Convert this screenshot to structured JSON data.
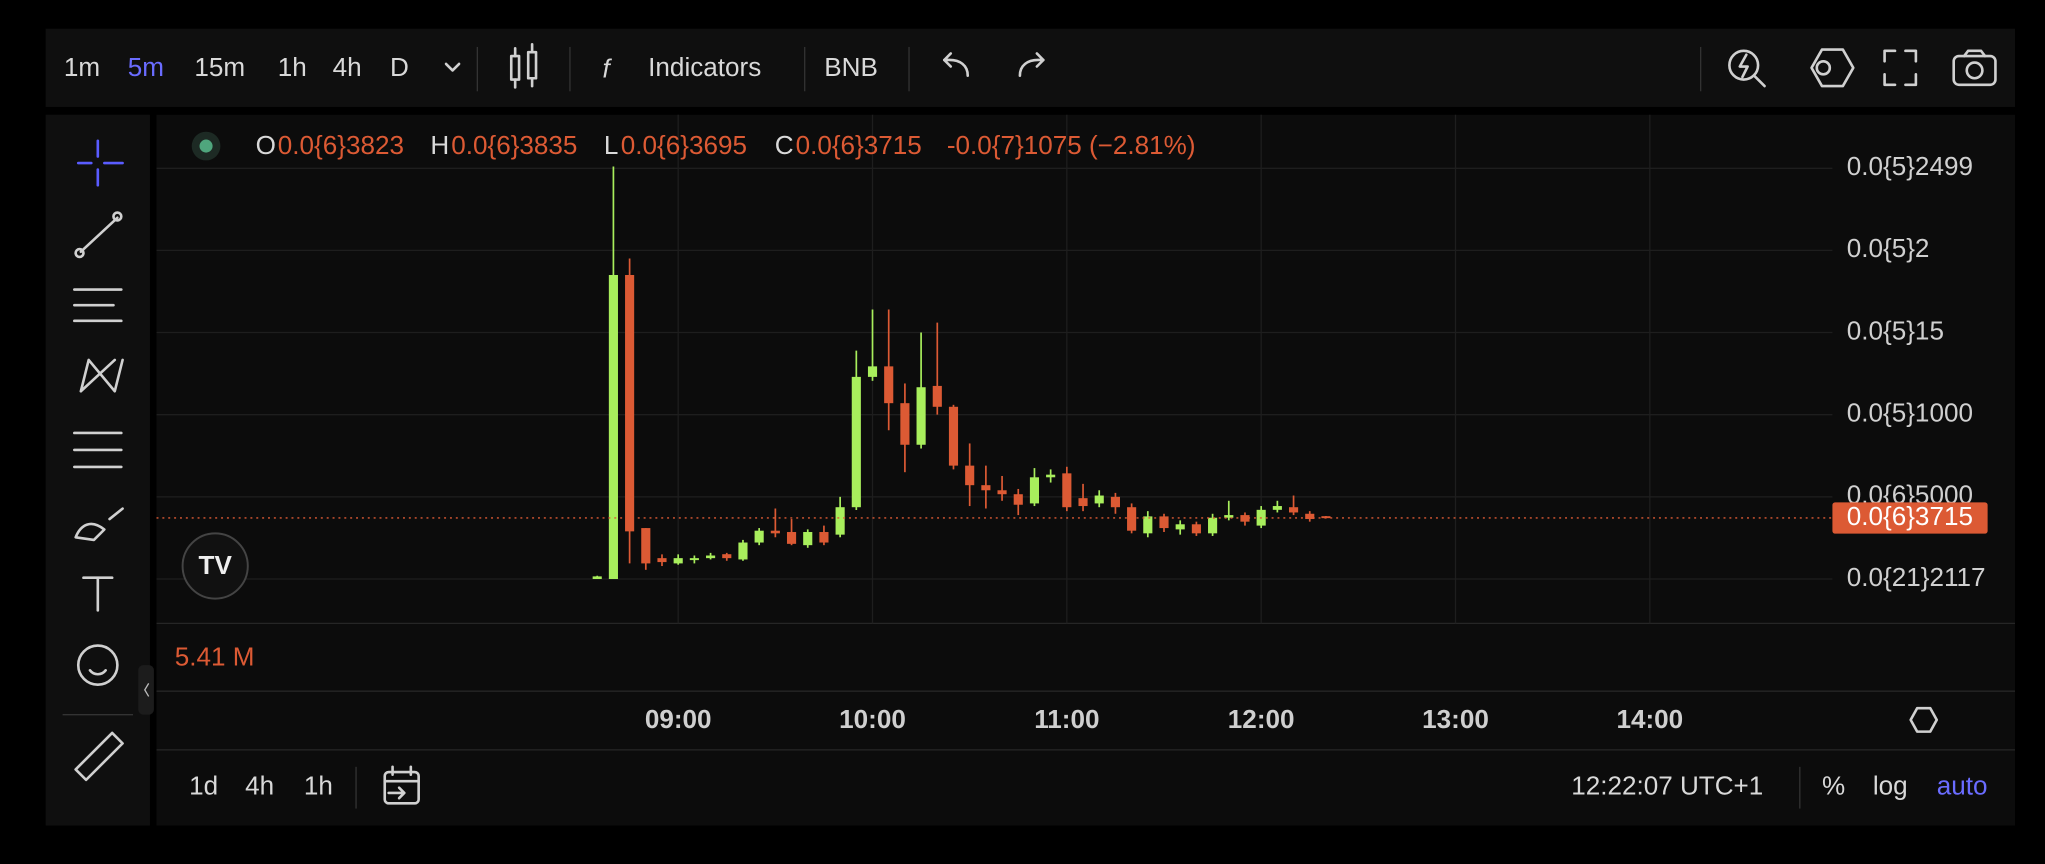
{
  "toolbar": {
    "intervals": [
      "1m",
      "5m",
      "15m",
      "1h",
      "4h",
      "D"
    ],
    "active_interval": "5m",
    "indicators": "Indicators",
    "symbol": "BNB"
  },
  "legend": {
    "o_label": "O",
    "o": "0.0{6}3823",
    "h_label": "H",
    "h": "0.0{6}3835",
    "l_label": "L",
    "l": "0.0{6}3695",
    "c_label": "C",
    "c": "0.0{6}3715",
    "change": "-0.0{7}1075 (−2.81%)"
  },
  "volume_label": "5.41 M",
  "last_price_label": "0.0{6}3715",
  "bottom_bar": {
    "ranges": [
      "1d",
      "4h",
      "1h"
    ],
    "clock": "12:22:07 UTC+1",
    "percent": "%",
    "log": "log",
    "auto": "auto"
  },
  "chart_data": {
    "type": "candlestick",
    "up_color": "#a8ee5c",
    "down_color": "#dc5a34",
    "grid": true,
    "x": [
      "08:35",
      "08:40",
      "08:45",
      "08:50",
      "08:55",
      "09:00",
      "09:05",
      "09:10",
      "09:15",
      "09:20",
      "09:25",
      "09:30",
      "09:35",
      "09:40",
      "09:45",
      "09:50",
      "09:55",
      "10:00",
      "10:05",
      "10:10",
      "10:15",
      "10:20",
      "10:25",
      "10:30",
      "10:35",
      "10:40",
      "10:45",
      "10:50",
      "10:55",
      "11:00",
      "11:05",
      "11:10",
      "11:15",
      "11:20",
      "11:25",
      "11:30",
      "11:35",
      "11:40",
      "11:45",
      "11:50",
      "11:55",
      "12:00",
      "12:05",
      "12:10",
      "12:15",
      "12:20"
    ],
    "open": [
      0,
      0,
      1.85e-07,
      3.1e-08,
      1.27e-08,
      9.5e-09,
      1.19e-08,
      1.27e-08,
      1.51e-08,
      1.19e-08,
      2.22e-08,
      2.94e-08,
      2.86e-08,
      2.06e-08,
      2.86e-08,
      2.7e-08,
      4.37e-08,
      1.23e-07,
      1.294e-07,
      1.07e-07,
      8.17e-08,
      1.175e-07,
      1.048e-07,
      6.9e-08,
      5.71e-08,
      5.4e-08,
      5.16e-08,
      4.6e-08,
      6.19e-08,
      6.43e-08,
      4.92e-08,
      4.6e-08,
      5e-08,
      4.37e-08,
      2.78e-08,
      3.81e-08,
      3.02e-08,
      3.33e-08,
      2.78e-08,
      3.73e-08,
      3.89e-08,
      3.25e-08,
      4.21e-08,
      4.37e-08,
      3.97e-08,
      3.823e-08
    ],
    "high": [
      2e-09,
      2.51e-07,
      1.95e-07,
      3.1e-08,
      1.5e-08,
      1.5e-08,
      1.43e-08,
      1.59e-08,
      1.59e-08,
      2.38e-08,
      3.1e-08,
      4.29e-08,
      3.65e-08,
      3.02e-08,
      3.25e-08,
      5e-08,
      1.39e-07,
      1.64e-07,
      1.64e-07,
      1.19e-07,
      1.5e-07,
      1.56e-07,
      1.06e-07,
      8.25e-08,
      6.9e-08,
      6.27e-08,
      5.48e-08,
      6.75e-08,
      6.67e-08,
      6.83e-08,
      5.79e-08,
      5.4e-08,
      5.24e-08,
      4.6e-08,
      4.13e-08,
      3.97e-08,
      3.57e-08,
      3.49e-08,
      3.97e-08,
      4.76e-08,
      4.05e-08,
      4.44e-08,
      4.76e-08,
      5.08e-08,
      4.13e-08,
      3.835e-08
    ],
    "low": [
      0,
      0,
      9.5e-09,
      5.6e-09,
      7.9e-09,
      8.7e-09,
      9.5e-09,
      1.19e-08,
      1.11e-08,
      1.11e-08,
      2.06e-08,
      2.54e-08,
      2.06e-08,
      1.9e-08,
      2.06e-08,
      2.54e-08,
      4.2e-08,
      1.206e-07,
      9.05e-08,
      6.5e-08,
      7.94e-08,
      1e-07,
      6.67e-08,
      4.44e-08,
      4.29e-08,
      4.76e-08,
      3.89e-08,
      4.44e-08,
      5.87e-08,
      4.13e-08,
      4.13e-08,
      4.37e-08,
      3.97e-08,
      2.78e-08,
      2.54e-08,
      2.86e-08,
      2.7e-08,
      2.62e-08,
      2.62e-08,
      3.57e-08,
      3.25e-08,
      3.1e-08,
      4.05e-08,
      3.89e-08,
      3.49e-08,
      3.695e-08
    ],
    "close": [
      1.6e-09,
      1.85e-07,
      2.9e-08,
      9.5e-09,
      1.03e-08,
      1.27e-08,
      1.27e-08,
      1.43e-08,
      1.27e-08,
      2.22e-08,
      2.94e-08,
      2.78e-08,
      2.14e-08,
      2.86e-08,
      2.22e-08,
      4.37e-08,
      1.23e-07,
      1.294e-07,
      1.07e-07,
      8.17e-08,
      1.167e-07,
      1.048e-07,
      6.9e-08,
      5.71e-08,
      5.4e-08,
      5.16e-08,
      4.52e-08,
      6.19e-08,
      6.35e-08,
      4.37e-08,
      4.44e-08,
      5.08e-08,
      4.37e-08,
      2.94e-08,
      3.81e-08,
      3.1e-08,
      3.33e-08,
      2.78e-08,
      3.73e-08,
      3.89e-08,
      3.49e-08,
      4.21e-08,
      4.44e-08,
      4.05e-08,
      3.65e-08,
      3.715e-08
    ],
    "ylim": [
      -2.7e-08,
      2.825e-07
    ],
    "yticks": [
      {
        "value": 2.117e-22,
        "label": "0.0{21}2117"
      },
      {
        "value": 5e-08,
        "label": "0.0{6}5000"
      },
      {
        "value": 1e-07,
        "label": "0.0{5}1000"
      },
      {
        "value": 1.5e-07,
        "label": "0.0{5}15"
      },
      {
        "value": 2e-07,
        "label": "0.0{5}2"
      },
      {
        "value": 2.499e-07,
        "label": "0.0{5}2499"
      }
    ],
    "xticks": [
      "09:00",
      "10:00",
      "11:00",
      "12:00",
      "13:00",
      "14:00"
    ]
  }
}
